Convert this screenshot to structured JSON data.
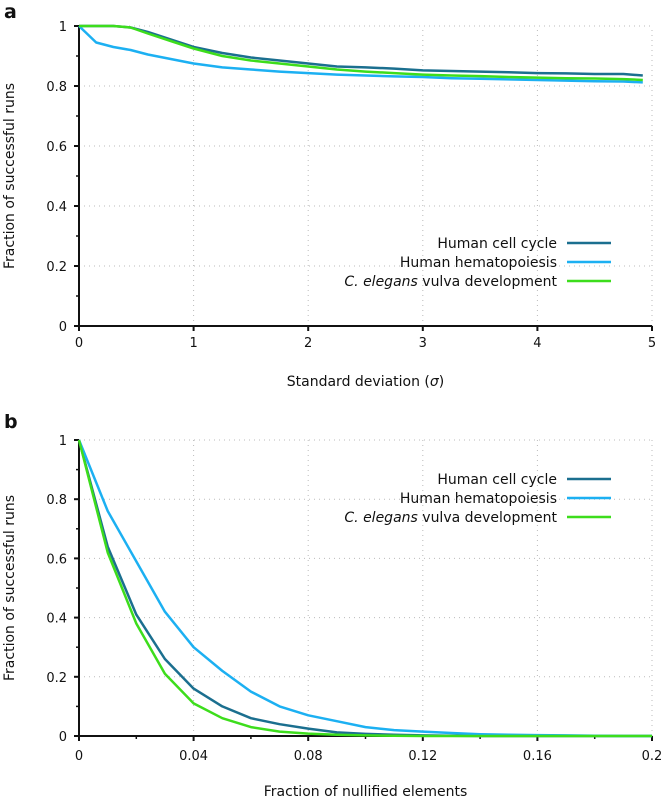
{
  "chart_data": [
    {
      "panel_label": "a",
      "type": "line",
      "xlabel_prefix": "Standard deviation (",
      "xlabel_symbol": "σ",
      "xlabel_suffix": ")",
      "ylabel": "Fraction of successful runs",
      "xlim": [
        0,
        5
      ],
      "ylim": [
        0,
        1
      ],
      "xticks": [
        "0",
        "1",
        "2",
        "3",
        "4",
        "5"
      ],
      "xtick_values": [
        0,
        1,
        2,
        3,
        4,
        5
      ],
      "yticks": [
        "0",
        "0.2",
        "0.4",
        "0.6",
        "0.8",
        "1"
      ],
      "ytick_values": [
        0,
        0.2,
        0.4,
        0.6,
        0.8,
        1
      ],
      "grid": true,
      "legend_position": "center-right",
      "x": [
        0,
        0.15,
        0.3,
        0.45,
        0.6,
        0.8,
        1,
        1.25,
        1.5,
        1.75,
        2,
        2.25,
        2.5,
        2.75,
        3,
        3.25,
        3.5,
        3.75,
        4,
        4.25,
        4.5,
        4.75,
        4.92
      ],
      "series": [
        {
          "name": "Human cell cycle",
          "italic_part": "",
          "color": "#1b6f8f",
          "values": [
            1,
            1,
            1,
            0.995,
            0.98,
            0.955,
            0.93,
            0.91,
            0.895,
            0.885,
            0.875,
            0.865,
            0.862,
            0.858,
            0.852,
            0.85,
            0.848,
            0.846,
            0.843,
            0.842,
            0.84,
            0.84,
            0.835
          ]
        },
        {
          "name": "Human hematopoiesis",
          "italic_part": "",
          "color": "#1cb0f2",
          "values": [
            1,
            0.945,
            0.93,
            0.92,
            0.905,
            0.89,
            0.875,
            0.862,
            0.855,
            0.848,
            0.843,
            0.838,
            0.835,
            0.832,
            0.83,
            0.826,
            0.824,
            0.822,
            0.82,
            0.818,
            0.816,
            0.815,
            0.812
          ]
        },
        {
          "name": " vulva development",
          "italic_part": "C. elegans",
          "color": "#3ddd1c",
          "values": [
            1,
            1,
            1,
            0.995,
            0.975,
            0.95,
            0.925,
            0.9,
            0.885,
            0.875,
            0.865,
            0.855,
            0.848,
            0.843,
            0.838,
            0.835,
            0.833,
            0.83,
            0.828,
            0.826,
            0.825,
            0.823,
            0.82
          ]
        }
      ]
    },
    {
      "panel_label": "b",
      "type": "line",
      "xlabel_prefix": "Fraction of nullified elements",
      "xlabel_symbol": "",
      "xlabel_suffix": "",
      "ylabel": "Fraction of successful runs",
      "xlim": [
        0,
        0.2
      ],
      "ylim": [
        0,
        1
      ],
      "xticks": [
        "0",
        "0.04",
        "0.08",
        "0.12",
        "0.16",
        "0.2"
      ],
      "xtick_values": [
        0,
        0.04,
        0.08,
        0.12,
        0.16,
        0.2
      ],
      "yticks": [
        "0",
        "0.2",
        "0.4",
        "0.6",
        "0.8",
        "1"
      ],
      "ytick_values": [
        0,
        0.2,
        0.4,
        0.6,
        0.8,
        1
      ],
      "grid": true,
      "legend_position": "top-right",
      "x": [
        0,
        0.01,
        0.02,
        0.03,
        0.04,
        0.05,
        0.06,
        0.07,
        0.08,
        0.09,
        0.1,
        0.11,
        0.12,
        0.13,
        0.14,
        0.15,
        0.16,
        0.17,
        0.18,
        0.19,
        0.2
      ],
      "series": [
        {
          "name": "Human cell cycle",
          "italic_part": "",
          "color": "#1b6f8f",
          "values": [
            1,
            0.64,
            0.41,
            0.26,
            0.16,
            0.1,
            0.06,
            0.04,
            0.025,
            0.012,
            0.007,
            0.004,
            0.002,
            0.001,
            0,
            0,
            0,
            0,
            0,
            0,
            0
          ]
        },
        {
          "name": "Human hematopoiesis",
          "italic_part": "",
          "color": "#1cb0f2",
          "values": [
            1,
            0.76,
            0.59,
            0.42,
            0.3,
            0.22,
            0.15,
            0.1,
            0.07,
            0.05,
            0.03,
            0.02,
            0.015,
            0.01,
            0.006,
            0.004,
            0.003,
            0.002,
            0.001,
            0,
            0
          ]
        },
        {
          "name": " vulva development",
          "italic_part": "C. elegans",
          "color": "#3ddd1c",
          "values": [
            1,
            0.62,
            0.38,
            0.21,
            0.11,
            0.06,
            0.03,
            0.015,
            0.008,
            0.004,
            0.002,
            0.001,
            0,
            0,
            0,
            0,
            0,
            0,
            0,
            0,
            0
          ]
        }
      ]
    }
  ]
}
